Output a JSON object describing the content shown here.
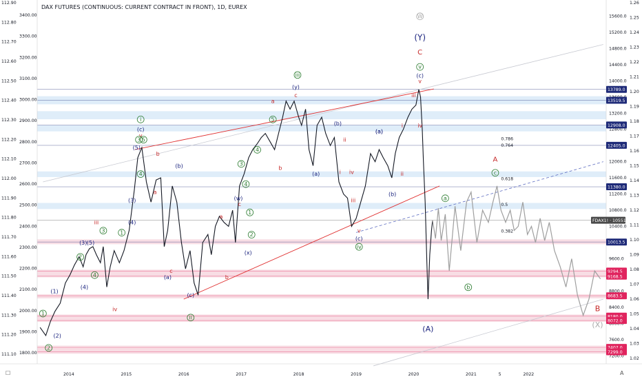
{
  "chart_data": {
    "type": "line",
    "title": "DAX FUTURES (CONTINUOUS: CURRENT CONTRACT IN FRONT), 1D, EUREX",
    "x_tick_labels": [
      "2014",
      "2015",
      "2016",
      "2017",
      "2018",
      "2019",
      "2020",
      "2021",
      "5",
      "2022"
    ],
    "x_tick_years": [
      2014,
      2015,
      2016,
      2017,
      2018,
      2019,
      2020,
      2021,
      2021.5,
      2022
    ],
    "left_axis": {
      "tick_labels": [
        "112.90",
        "112.80",
        "112.70",
        "112.60",
        "112.50",
        "112.40",
        "112.30",
        "112.20",
        "112.10",
        "112.00",
        "111.90",
        "111.80",
        "111.70",
        "111.60",
        "111.50",
        "111.40",
        "111.30",
        "111.20",
        "111.10"
      ],
      "secondary_labels": [
        "3400.00",
        "3300.00",
        "3200.00",
        "3100.00",
        "3000.00",
        "2900.00",
        "2800.00",
        "2700.00",
        "2600.00",
        "2500.00",
        "2400.00",
        "2300.00",
        "2200.00",
        "2100.00",
        "2000.00",
        "1900.00",
        "1800.00"
      ]
    },
    "right_axis": {
      "tick_labels": [
        "15600.0",
        "15200.0",
        "14800.0",
        "14400.0",
        "14000.0",
        "13600.0",
        "13200.0",
        "12800.0",
        "12400.0",
        "12000.0",
        "11600.0",
        "11200.0",
        "10800.0",
        "10400.0",
        "10000.0",
        "9600.0",
        "9200.0",
        "8800.0",
        "8400.0",
        "8000.0",
        "7600.0",
        "7200.0"
      ],
      "tick_values": [
        15600,
        15200,
        14800,
        14400,
        14000,
        13600,
        13200,
        12800,
        12400,
        12000,
        11600,
        11200,
        10800,
        10400,
        10000,
        9600,
        9200,
        8800,
        8400,
        8000,
        7600,
        7200
      ],
      "ratio_labels": [
        "1.26",
        "1.25",
        "1.24",
        "1.23",
        "1.22",
        "1.21",
        "1.20",
        "1.19",
        "1.18",
        "1.17",
        "1.16",
        "1.15",
        "1.14",
        "1.13",
        "1.12",
        "1.11",
        "1.10",
        "1.09",
        "1.08",
        "1.07",
        "1.06",
        "1.05",
        "1.04",
        "1.03",
        "1.02"
      ],
      "ylim": [
        7000,
        16000
      ]
    },
    "price_tags": [
      {
        "label": "13789.0",
        "value": 13789,
        "color": "#1e2a78"
      },
      {
        "label": "13519.5",
        "value": 13519.5,
        "color": "#1e2a78"
      },
      {
        "label": "12908.0",
        "value": 12908,
        "color": "#1e2a78"
      },
      {
        "label": "12405.0",
        "value": 12405,
        "color": "#1e2a78"
      },
      {
        "label": "11380.0",
        "value": 11380,
        "color": "#1e2a78"
      },
      {
        "label": "FDAX1! · 10551.0",
        "value": 10551,
        "color": "#4a4a4a"
      },
      {
        "label": "10013.5",
        "value": 10013.5,
        "color": "#1e2a78"
      },
      {
        "label": "9294.5",
        "value": 9294.5,
        "color": "#e0245e"
      },
      {
        "label": "9168.5",
        "value": 9168.5,
        "color": "#e0245e"
      },
      {
        "label": "8683.5",
        "value": 8683.5,
        "color": "#e0245e"
      },
      {
        "label": "8180.0",
        "value": 8180,
        "color": "#e0245e"
      },
      {
        "label": "8072.0",
        "value": 8072,
        "color": "#e0245e"
      },
      {
        "label": "7407.0",
        "value": 7407,
        "color": "#e0245e"
      },
      {
        "label": "7299.0",
        "value": 7299,
        "color": "#e0245e"
      }
    ],
    "fib_labels": [
      {
        "label": "0.786",
        "value": 12530,
        "color": "#888888"
      },
      {
        "label": "0.764",
        "value": 12370,
        "color": "#888888"
      },
      {
        "label": "0.618",
        "value": 11540,
        "color": "#e58a8a"
      },
      {
        "label": "0.5",
        "value": 10900,
        "color": "#888888"
      },
      {
        "label": "0.382",
        "value": 10250,
        "color": "#e58a8a"
      }
    ],
    "series": [
      {
        "x": [
          2013.5,
          2013.6,
          2013.68,
          2013.76,
          2013.85,
          2013.94,
          2014.02,
          2014.1,
          2014.18,
          2014.25,
          2014.3,
          2014.36,
          2014.42,
          2014.48,
          2014.55,
          2014.6,
          2014.66,
          2014.72,
          2014.79,
          2014.88,
          2014.96,
          2015.05,
          2015.14,
          2015.2,
          2015.27,
          2015.35,
          2015.43,
          2015.52,
          2015.6,
          2015.66,
          2015.72,
          2015.8,
          2015.88,
          2015.96,
          2016.03,
          2016.11,
          2016.18,
          2016.25,
          2016.33,
          2016.42,
          2016.48,
          2016.55,
          2016.62,
          2016.7,
          2016.78,
          2016.85,
          2016.9,
          2016.97,
          2017.05,
          2017.13,
          2017.2,
          2017.28,
          2017.35,
          2017.42,
          2017.5,
          2017.58,
          2017.65,
          2017.72,
          2017.78,
          2017.85,
          2017.92,
          2018.0,
          2018.05,
          2018.12,
          2018.18,
          2018.25,
          2018.32,
          2018.4,
          2018.47,
          2018.55,
          2018.62,
          2018.7,
          2018.78,
          2018.85,
          2018.92,
          2019.0,
          2019.08,
          2019.16,
          2019.25,
          2019.33,
          2019.4,
          2019.47,
          2019.55,
          2019.62,
          2019.68,
          2019.75,
          2019.82,
          2019.9,
          2019.97,
          2020.04,
          2020.09,
          2020.12,
          2020.15,
          2020.17,
          2020.2,
          2020.23,
          2020.25,
          2020.28,
          2020.31,
          2020.33
        ],
        "y": [
          7900,
          7700,
          8050,
          8300,
          8500,
          9000,
          9200,
          9450,
          9650,
          9400,
          9700,
          9850,
          9900,
          9700,
          9500,
          9900,
          8900,
          9400,
          9800,
          9500,
          9800,
          10300,
          11300,
          12100,
          12350,
          11500,
          11000,
          11550,
          11600,
          9900,
          10300,
          11400,
          11000,
          10000,
          9350,
          9800,
          9000,
          8700,
          10000,
          10200,
          9700,
          10400,
          10650,
          10500,
          10400,
          10800,
          10000,
          11400,
          11700,
          12100,
          12300,
          12450,
          12600,
          12700,
          12500,
          12300,
          12700,
          13100,
          13500,
          13300,
          13500,
          13100,
          12900,
          13300,
          12300,
          11900,
          12900,
          13100,
          12700,
          12400,
          12600,
          11500,
          11200,
          11100,
          10400,
          10600,
          11000,
          11400,
          12200,
          12000,
          12300,
          12100,
          11900,
          11600,
          12200,
          12600,
          12800,
          13100,
          13300,
          13400,
          13789,
          13600,
          12800,
          12000,
          11000,
          9500,
          8600,
          9700,
          10300,
          10551
        ]
      },
      {
        "name": "",
        "x": [
          2020.33,
          2020.38,
          2020.43,
          2020.48,
          2020.55,
          2020.62,
          2020.72,
          2020.82,
          2020.92,
          2021.0,
          2021.1,
          2021.2,
          2021.3,
          2021.38,
          2021.45,
          2021.52,
          2021.6,
          2021.68,
          2021.75,
          2021.82,
          2021.9,
          2021.98,
          2022.05,
          2022.12,
          2022.2,
          2022.28,
          2022.36,
          2022.45,
          2022.55,
          2022.65,
          2022.75,
          2022.85,
          2022.95,
          2023.05,
          2023.15,
          2023.25
        ],
        "y": [
          10551,
          10100,
          10850,
          10050,
          10700,
          9300,
          10900,
          9800,
          11000,
          11250,
          10000,
          10800,
          10500,
          11000,
          11400,
          10800,
          10500,
          10800,
          10300,
          10400,
          11000,
          10200,
          10400,
          10000,
          10600,
          10050,
          10500,
          9800,
          9400,
          8900,
          9600,
          8700,
          8200,
          8600,
          9300,
          9100
        ]
      }
    ],
    "wave_labels": [
      {
        "text": "W",
        "x": 2020.11,
        "y": 15550,
        "color": "#aaaaaa",
        "circle": true
      },
      {
        "text": "(Y)",
        "x": 2020.11,
        "y": 15000,
        "color": "#1a237e",
        "size": 12
      },
      {
        "text": "C",
        "x": 2020.11,
        "y": 14650,
        "color": "#c62828",
        "size": 10
      },
      {
        "text": "v",
        "x": 2020.11,
        "y": 14300,
        "color": "#2e7d32",
        "circle": true
      },
      {
        "text": "(c)",
        "x": 2020.11,
        "y": 14080,
        "color": "#1a237e"
      },
      {
        "text": "v",
        "x": 2020.11,
        "y": 13950,
        "color": "#c62828"
      },
      {
        "text": "iii",
        "x": 2020.0,
        "y": 13600,
        "color": "#c62828"
      },
      {
        "text": "iv",
        "x": 2020.11,
        "y": 12850,
        "color": "#c62828"
      },
      {
        "text": "i",
        "x": 2019.8,
        "y": 12850,
        "color": "#c62828"
      },
      {
        "text": "(a)",
        "x": 2019.4,
        "y": 12700,
        "color": "#1a237e"
      },
      {
        "text": "ii",
        "x": 2019.8,
        "y": 11650,
        "color": "#c62828"
      },
      {
        "text": "(b)",
        "x": 2019.63,
        "y": 11150,
        "color": "#1a237e"
      },
      {
        "text": "iii",
        "x": 2018.95,
        "y": 11000,
        "color": "#c62828"
      },
      {
        "text": "iv",
        "x": 2018.92,
        "y": 11700,
        "color": "#c62828"
      },
      {
        "text": "i",
        "x": 2018.72,
        "y": 11700,
        "color": "#c62828"
      },
      {
        "text": "ii",
        "x": 2018.8,
        "y": 12500,
        "color": "#c62828"
      },
      {
        "text": "(b)",
        "x": 2018.68,
        "y": 12900,
        "color": "#1a237e"
      },
      {
        "text": "v",
        "x": 2019.05,
        "y": 10250,
        "color": "#c62828"
      },
      {
        "text": "(c)",
        "x": 2019.05,
        "y": 10050,
        "color": "#1a237e"
      },
      {
        "text": "iv",
        "x": 2019.05,
        "y": 9850,
        "color": "#2e7d32",
        "circle": true
      },
      {
        "text": "iii",
        "x": 2017.98,
        "y": 14100,
        "color": "#2e7d32",
        "circle": true
      },
      {
        "text": "(y)",
        "x": 2017.95,
        "y": 13800,
        "color": "#1a237e"
      },
      {
        "text": "c",
        "x": 2017.95,
        "y": 13600,
        "color": "#c62828"
      },
      {
        "text": "a",
        "x": 2017.55,
        "y": 13450,
        "color": "#c62828"
      },
      {
        "text": "5",
        "x": 2017.55,
        "y": 13000,
        "color": "#2e7d32",
        "circle": true
      },
      {
        "text": "4",
        "x": 2017.28,
        "y": 12250,
        "color": "#2e7d32",
        "circle": true
      },
      {
        "text": "3",
        "x": 2017.0,
        "y": 11900,
        "color": "#2e7d32",
        "circle": true
      },
      {
        "text": "b",
        "x": 2017.68,
        "y": 11800,
        "color": "#c62828"
      },
      {
        "text": "(a)",
        "x": 2018.3,
        "y": 11650,
        "color": "#1a237e"
      },
      {
        "text": "4",
        "x": 2017.08,
        "y": 11400,
        "color": "#2e7d32",
        "circle": true
      },
      {
        "text": "(w)",
        "x": 2016.95,
        "y": 11050,
        "color": "#1a237e"
      },
      {
        "text": "c",
        "x": 2016.97,
        "y": 10900,
        "color": "#c62828"
      },
      {
        "text": "1",
        "x": 2017.15,
        "y": 10700,
        "color": "#2e7d32",
        "circle": true
      },
      {
        "text": "2",
        "x": 2017.18,
        "y": 10150,
        "color": "#2e7d32",
        "circle": true
      },
      {
        "text": "(x)",
        "x": 2017.12,
        "y": 9700,
        "color": "#1a237e"
      },
      {
        "text": "a",
        "x": 2016.65,
        "y": 10600,
        "color": "#c62828"
      },
      {
        "text": "b",
        "x": 2016.75,
        "y": 9100,
        "color": "#c62828"
      },
      {
        "text": "(c)",
        "x": 2016.12,
        "y": 8650,
        "color": "#1a237e"
      },
      {
        "text": "ii",
        "x": 2016.12,
        "y": 8100,
        "color": "#2e7d32",
        "circle": true
      },
      {
        "text": "(b)",
        "x": 2015.92,
        "y": 11850,
        "color": "#1a237e"
      },
      {
        "text": "c",
        "x": 2015.78,
        "y": 9250,
        "color": "#c62828"
      },
      {
        "text": "(a)",
        "x": 2015.72,
        "y": 9100,
        "color": "#1a237e"
      },
      {
        "text": "b",
        "x": 2015.55,
        "y": 12150,
        "color": "#c62828"
      },
      {
        "text": "a",
        "x": 2015.5,
        "y": 11200,
        "color": "#c62828"
      },
      {
        "text": "i",
        "x": 2015.25,
        "y": 13000,
        "color": "#2e7d32",
        "circle": true
      },
      {
        "text": "(c)",
        "x": 2015.25,
        "y": 12750,
        "color": "#1a237e"
      },
      {
        "text": "v",
        "x": 2015.25,
        "y": 12600,
        "color": "#c62828"
      },
      {
        "text": "3",
        "x": 2015.22,
        "y": 12500,
        "color": "#2e7d32",
        "circle": true
      },
      {
        "text": "5",
        "x": 2015.3,
        "y": 12500,
        "color": "#2e7d32",
        "circle": true
      },
      {
        "text": "(5)",
        "x": 2015.18,
        "y": 12300,
        "color": "#1a237e"
      },
      {
        "text": "4",
        "x": 2015.25,
        "y": 11650,
        "color": "#2e7d32",
        "circle": true
      },
      {
        "text": "(3)",
        "x": 2015.1,
        "y": 11000,
        "color": "#1a237e"
      },
      {
        "text": "(4)",
        "x": 2015.1,
        "y": 10450,
        "color": "#1a237e"
      },
      {
        "text": "1",
        "x": 2014.92,
        "y": 10200,
        "color": "#2e7d32",
        "circle": true
      },
      {
        "text": "3",
        "x": 2014.6,
        "y": 10250,
        "color": "#2e7d32",
        "circle": true
      },
      {
        "text": "iii",
        "x": 2014.48,
        "y": 10450,
        "color": "#c62828"
      },
      {
        "text": "2",
        "x": 2014.2,
        "y": 9600,
        "color": "#2e7d32",
        "circle": true
      },
      {
        "text": "(3)",
        "x": 2014.25,
        "y": 9950,
        "color": "#1a237e"
      },
      {
        "text": "(5)",
        "x": 2014.38,
        "y": 9950,
        "color": "#1a237e"
      },
      {
        "text": "4",
        "x": 2014.45,
        "y": 9150,
        "color": "#2e7d32",
        "circle": true
      },
      {
        "text": "(4)",
        "x": 2014.27,
        "y": 8850,
        "color": "#1a237e"
      },
      {
        "text": "iv",
        "x": 2014.8,
        "y": 8300,
        "color": "#c62828"
      },
      {
        "text": "1",
        "x": 2013.55,
        "y": 8200,
        "color": "#2e7d32",
        "circle": true
      },
      {
        "text": "(1)",
        "x": 2013.75,
        "y": 8750,
        "color": "#1a237e"
      },
      {
        "text": "(2)",
        "x": 2013.8,
        "y": 7650,
        "color": "#1a237e"
      },
      {
        "text": "2",
        "x": 2013.65,
        "y": 7350,
        "color": "#2e7d32",
        "circle": true
      },
      {
        "text": "(a)",
        "x": 2019.4,
        "y": 12700,
        "color": "#1a237e"
      },
      {
        "text": "A",
        "x": 2021.42,
        "y": 12000,
        "color": "#c62828",
        "size": 10
      },
      {
        "text": "c",
        "x": 2021.42,
        "y": 11680,
        "color": "#2e7d32",
        "circle": true
      },
      {
        "text": "a",
        "x": 2020.55,
        "y": 11050,
        "color": "#2e7d32",
        "circle": true
      },
      {
        "text": "b",
        "x": 2020.95,
        "y": 8850,
        "color": "#2e7d32",
        "circle": true
      },
      {
        "text": "(A)",
        "x": 2020.25,
        "y": 7800,
        "color": "#1a237e",
        "size": 11
      },
      {
        "text": "B",
        "x": 2023.2,
        "y": 8300,
        "color": "#c62828",
        "size": 11
      },
      {
        "text": "(X)",
        "x": 2023.2,
        "y": 7900,
        "color": "#aaaaaa",
        "size": 11
      }
    ],
    "grid": false,
    "legend": "none"
  }
}
